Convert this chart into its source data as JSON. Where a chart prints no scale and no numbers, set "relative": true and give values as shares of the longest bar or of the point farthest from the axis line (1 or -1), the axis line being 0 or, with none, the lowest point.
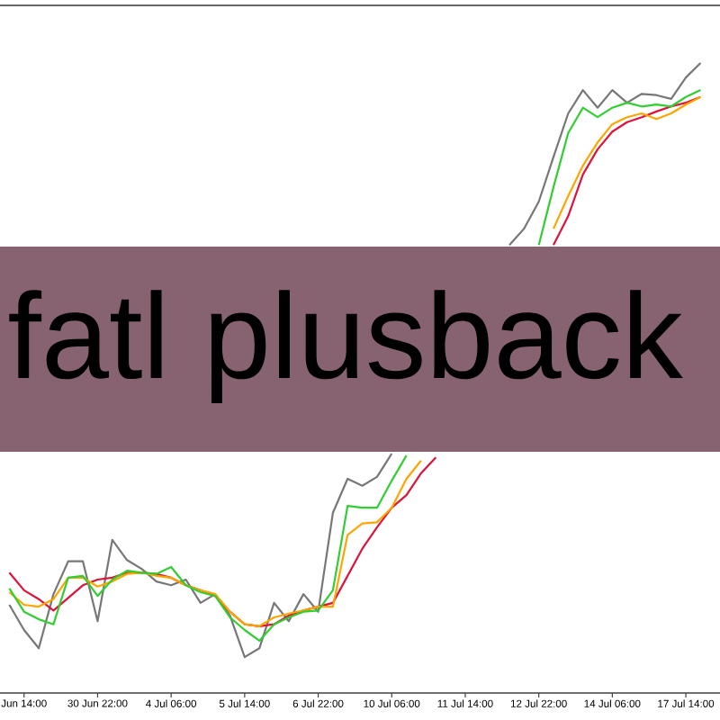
{
  "chart_data": {
    "type": "line",
    "title": "fatl plusback",
    "relative": true,
    "categories": [
      null,
      "Jun 14:00",
      null,
      null,
      null,
      null,
      "30 Jun 22:00",
      null,
      null,
      null,
      null,
      "4 Jul 06:00",
      null,
      null,
      null,
      null,
      "5 Jul 14:00",
      null,
      null,
      null,
      null,
      "6 Jul 22:00",
      null,
      null,
      null,
      null,
      "10 Jul 06:00",
      null,
      null,
      null,
      null,
      "11 Jul 14:00",
      null,
      null,
      null,
      null,
      "12 Jul 22:00",
      null,
      null,
      null,
      null,
      "14 Jul 06:00",
      null,
      null,
      null,
      null,
      "17 Jul 14:00",
      null
    ],
    "series": [
      {
        "color": "#777777",
        "values": [
          0.14,
          0.1,
          0.071,
          0.157,
          0.209,
          0.209,
          0.114,
          0.243,
          0.211,
          0.197,
          0.177,
          0.171,
          0.18,
          0.143,
          0.157,
          0.123,
          0.057,
          0.071,
          0.143,
          0.114,
          0.157,
          0.129,
          0.286,
          0.34,
          0.329,
          0.343,
          0.38,
          null,
          null,
          null,
          null,
          null,
          null,
          null,
          0.711,
          0.737,
          0.78,
          0.851,
          0.92,
          0.957,
          0.929,
          0.957,
          0.937,
          0.951,
          0.949,
          0.943,
          0.977,
          1.0
        ]
      },
      {
        "color": "#dc143c",
        "values": [
          0.191,
          0.163,
          0.149,
          0.131,
          0.151,
          0.171,
          0.18,
          0.183,
          0.191,
          0.191,
          0.189,
          0.183,
          0.171,
          0.163,
          0.154,
          0.129,
          0.109,
          0.106,
          0.109,
          0.123,
          0.131,
          0.137,
          0.143,
          0.186,
          0.229,
          0.263,
          0.294,
          0.314,
          0.349,
          0.374,
          null,
          null,
          null,
          null,
          null,
          null,
          null,
          0.711,
          0.757,
          0.823,
          0.863,
          0.891,
          0.906,
          0.914,
          0.923,
          0.931,
          0.937,
          0.946
        ]
      },
      {
        "color": "#ffa500",
        "values": [
          0.16,
          0.14,
          0.137,
          0.149,
          0.183,
          0.183,
          0.169,
          0.177,
          0.189,
          0.191,
          0.186,
          0.183,
          0.171,
          0.163,
          0.157,
          0.129,
          0.109,
          0.106,
          0.12,
          0.126,
          0.131,
          0.137,
          0.137,
          0.251,
          0.269,
          0.271,
          0.294,
          0.34,
          0.369,
          null,
          null,
          null,
          null,
          null,
          null,
          null,
          null,
          0.737,
          0.789,
          0.837,
          0.874,
          0.903,
          0.914,
          0.92,
          0.911,
          0.92,
          0.934,
          0.946
        ]
      },
      {
        "color": "#32cd32",
        "values": [
          0.166,
          0.129,
          0.117,
          0.109,
          0.183,
          0.186,
          0.154,
          0.18,
          0.194,
          0.191,
          0.189,
          0.2,
          0.171,
          0.16,
          0.154,
          0.12,
          0.1,
          0.083,
          0.109,
          0.12,
          0.129,
          0.131,
          0.163,
          0.297,
          0.294,
          0.294,
          0.337,
          0.377,
          null,
          null,
          null,
          null,
          null,
          null,
          null,
          null,
          0.711,
          0.803,
          0.889,
          0.929,
          0.914,
          0.929,
          0.937,
          0.931,
          0.934,
          0.931,
          0.946,
          0.957
        ]
      }
    ]
  }
}
